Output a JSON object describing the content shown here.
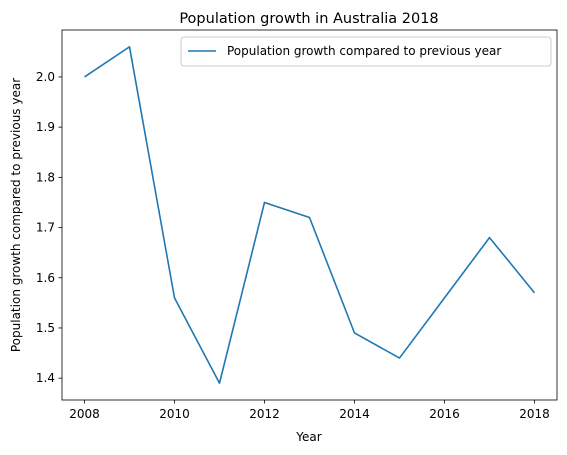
{
  "chart_data": {
    "type": "line",
    "title": "Population growth in Australia 2018",
    "xlabel": "Year",
    "ylabel": "Population growth compared to previous year",
    "x": [
      2008,
      2009,
      2010,
      2011,
      2012,
      2013,
      2014,
      2015,
      2016,
      2017,
      2018
    ],
    "series": [
      {
        "name": "Population growth compared to previous year",
        "color": "#1f77b4",
        "values": [
          2.0,
          2.06,
          1.56,
          1.39,
          1.75,
          1.72,
          1.49,
          1.44,
          1.56,
          1.68,
          1.57
        ]
      }
    ],
    "xticks": [
      "2008",
      "2010",
      "2012",
      "2014",
      "2016",
      "2018"
    ],
    "yticks": [
      "1.4",
      "1.5",
      "1.6",
      "1.7",
      "1.8",
      "1.9",
      "2.0"
    ],
    "xlim": [
      2007.5,
      2018.5
    ],
    "ylim": [
      1.3565,
      2.0935
    ],
    "grid": false,
    "legend_position": "upper right"
  }
}
